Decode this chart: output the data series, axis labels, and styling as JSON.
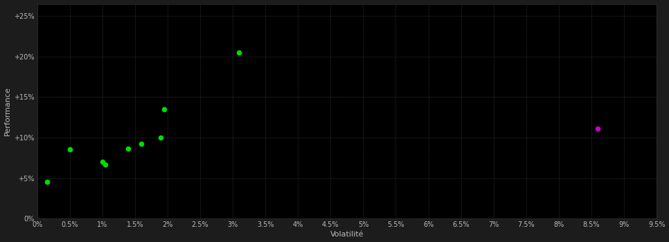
{
  "green_points": [
    [
      0.0015,
      0.045
    ],
    [
      0.005,
      0.085
    ],
    [
      0.01,
      0.07
    ],
    [
      0.0105,
      0.067
    ],
    [
      0.014,
      0.086
    ],
    [
      0.016,
      0.092
    ],
    [
      0.019,
      0.1
    ],
    [
      0.0195,
      0.135
    ],
    [
      0.031,
      0.205
    ]
  ],
  "magenta_points": [
    [
      0.086,
      0.111
    ]
  ],
  "green_color": "#00dd00",
  "magenta_color": "#cc00cc",
  "plot_bg_color": "#000000",
  "outer_bg": "#1c1c1c",
  "grid_color": "#404040",
  "text_color": "#bbbbbb",
  "xlabel": "Volatilité",
  "ylabel": "Performance",
  "xlim": [
    0.0,
    0.095
  ],
  "ylim": [
    0.0,
    0.265
  ],
  "xticks": [
    0.0,
    0.005,
    0.01,
    0.015,
    0.02,
    0.025,
    0.03,
    0.035,
    0.04,
    0.045,
    0.05,
    0.055,
    0.06,
    0.065,
    0.07,
    0.075,
    0.08,
    0.085,
    0.09,
    0.095
  ],
  "yticks": [
    0.0,
    0.05,
    0.1,
    0.15,
    0.2,
    0.25
  ],
  "xtick_labels": [
    "0%",
    "0.5%",
    "1%",
    "1.5%",
    "2%",
    "2.5%",
    "3%",
    "3.5%",
    "4%",
    "4.5%",
    "5%",
    "5.5%",
    "6%",
    "6.5%",
    "7%",
    "7.5%",
    "8%",
    "8.5%",
    "9%",
    "9.5%"
  ],
  "ytick_labels": [
    "0%",
    "+5%",
    "+10%",
    "+15%",
    "+20%",
    "+25%"
  ],
  "marker_size": 30,
  "xlabel_fontsize": 8,
  "ylabel_fontsize": 8,
  "tick_fontsize": 7
}
